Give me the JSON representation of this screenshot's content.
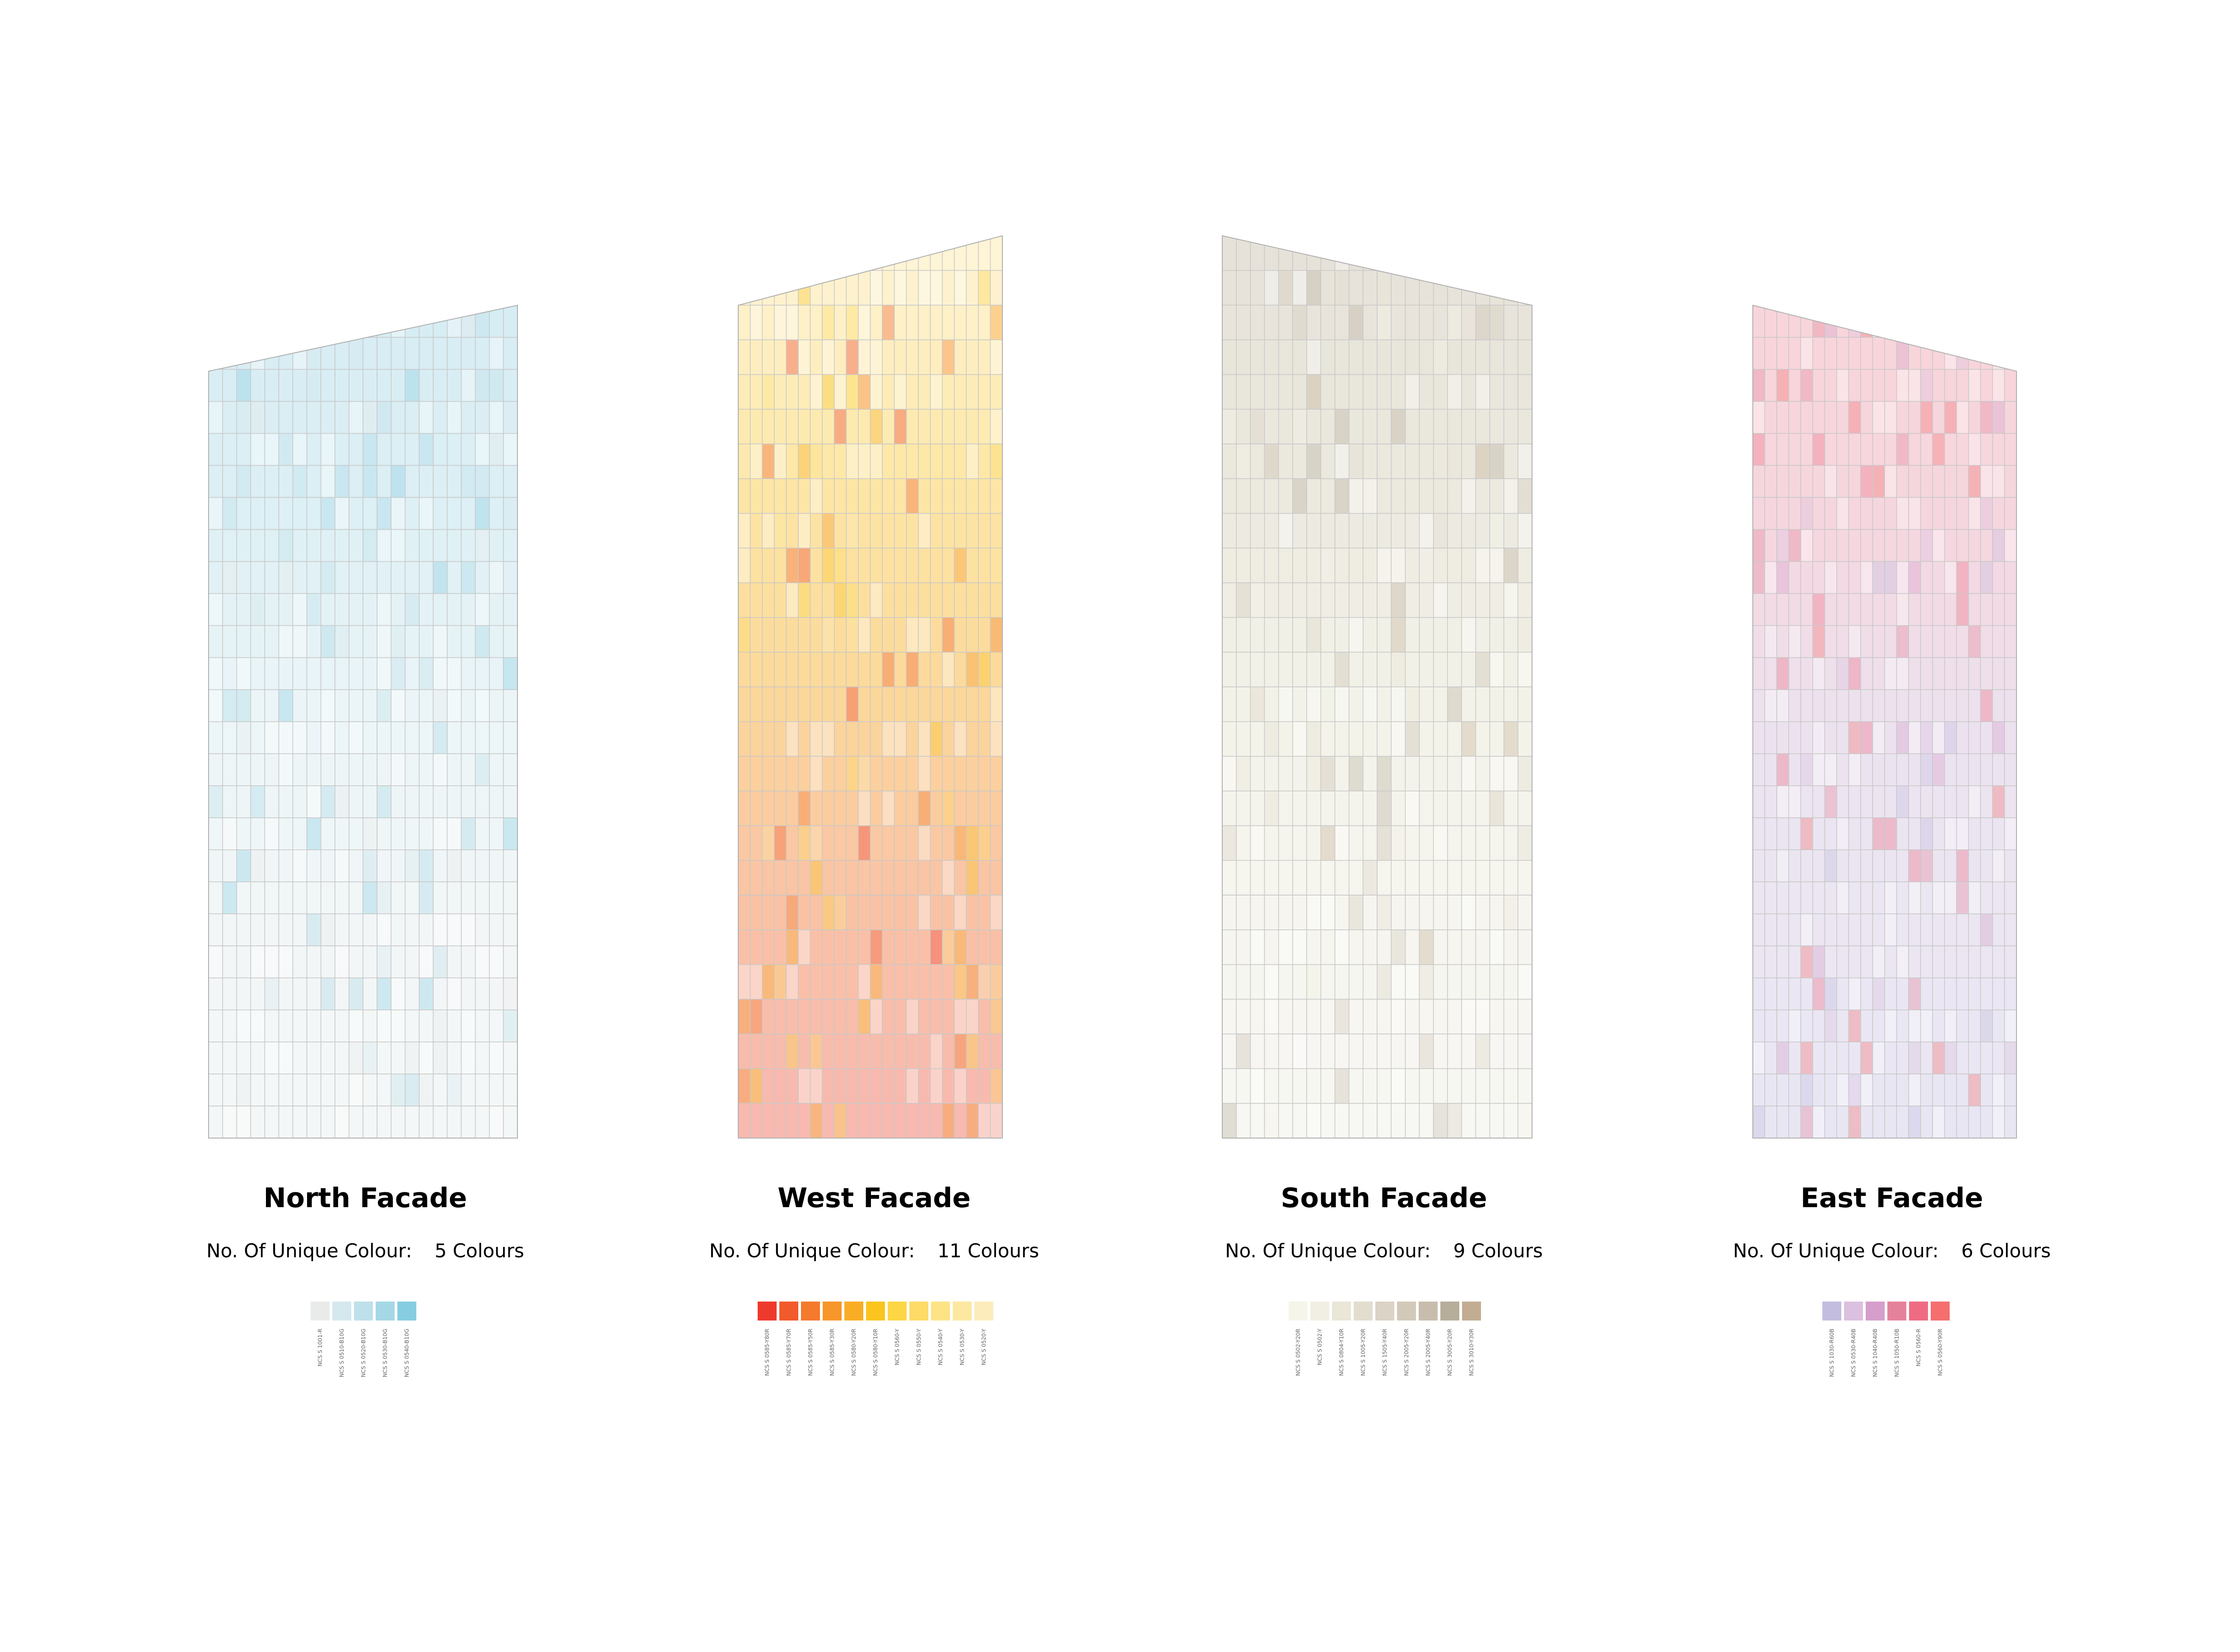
{
  "facades": [
    {
      "id": "north",
      "title": "North Facade",
      "count_label": "No. Of Unique Colour:",
      "count_value": "5 Colours",
      "palette": [
        {
          "code": "NCS S 1001-R",
          "color": "#e9ebeb"
        },
        {
          "code": "NCS S 0510-B10G",
          "color": "#d4e8ee"
        },
        {
          "code": "NCS S 0520-B10G",
          "color": "#bee0ea"
        },
        {
          "code": "NCS S 0530-B10G",
          "color": "#a5d7e6"
        },
        {
          "code": "NCS S 0540-B10G",
          "color": "#86cde2"
        }
      ],
      "gradient": [
        "#d7edf4",
        "#ddf0f5",
        "#ecf5f7",
        "#f2f6f7",
        "#f4f7f7"
      ]
    },
    {
      "id": "west",
      "title": "West Facade",
      "count_label": "No. Of Unique Colour:",
      "count_value": "11 Colours",
      "palette": [
        {
          "code": "NCS S 0585-Y80R",
          "color": "#ee3a2d"
        },
        {
          "code": "NCS S 0585-Y70R",
          "color": "#f15a2b"
        },
        {
          "code": "NCS S 0585-Y50R",
          "color": "#f47a2c"
        },
        {
          "code": "NCS S 0585-Y30R",
          "color": "#f7962a"
        },
        {
          "code": "NCS S 0580-Y20R",
          "color": "#f9ad25"
        },
        {
          "code": "NCS S 0580-Y10R",
          "color": "#fbc41f"
        },
        {
          "code": "NCS S 0560-Y",
          "color": "#fdd645"
        },
        {
          "code": "NCS S 0550-Y",
          "color": "#fddb66"
        },
        {
          "code": "NCS S 0540-Y",
          "color": "#fde386"
        },
        {
          "code": "NCS S 0530-Y",
          "color": "#fde8a2"
        },
        {
          "code": "NCS S 0520-Y",
          "color": "#fcecbb"
        }
      ],
      "gradient": [
        "#fef4d6",
        "#fde7a6",
        "#fcd99a",
        "#f9c2a5",
        "#f8b9b0"
      ]
    },
    {
      "id": "south",
      "title": "South Facade",
      "count_label": "No. Of Unique Colour:",
      "count_value": "9 Colours",
      "palette": [
        {
          "code": "NCS S 0502-Y20R",
          "color": "#f6f5ea"
        },
        {
          "code": "NCS S 0502-Y",
          "color": "#f1efe3"
        },
        {
          "code": "NCS S 0804-Y10R",
          "color": "#eae6d8"
        },
        {
          "code": "NCS S 1005-Y20R",
          "color": "#e3ddcf"
        },
        {
          "code": "NCS S 1505-Y40R",
          "color": "#dbd3c5"
        },
        {
          "code": "NCS S 2005-Y20R",
          "color": "#d2c9b9"
        },
        {
          "code": "NCS S 2005-Y40R",
          "color": "#c8bdad"
        },
        {
          "code": "NCS S 3005-Y20R",
          "color": "#b6ad9b"
        },
        {
          "code": "NCS S 3010-Y30R",
          "color": "#c2ad92"
        }
      ],
      "gradient": [
        "#e6e2d9",
        "#ebe8de",
        "#f3f2e8",
        "#f6f5ef",
        "#f7f7f3"
      ]
    },
    {
      "id": "east",
      "title": "East Facade",
      "count_label": "No. Of Unique Colour:",
      "count_value": "6 Colours",
      "palette": [
        {
          "code": "NCS S 1030-R60B",
          "color": "#c3bde0"
        },
        {
          "code": "NCS S 0530-R40B",
          "color": "#dcc0df"
        },
        {
          "code": "NCS S 1040-R40B",
          "color": "#d59ecb"
        },
        {
          "code": "NCS S 1050-R10B",
          "color": "#e5829b"
        },
        {
          "code": "NCS S 0560-R",
          "color": "#ef6b84"
        },
        {
          "code": "NCS S 0560-Y90R",
          "color": "#f46f6e"
        }
      ],
      "gradient": [
        "#f8d5da",
        "#f6d6de",
        "#ece2ef",
        "#ebe6f2",
        "#e9e6f4"
      ]
    }
  ]
}
